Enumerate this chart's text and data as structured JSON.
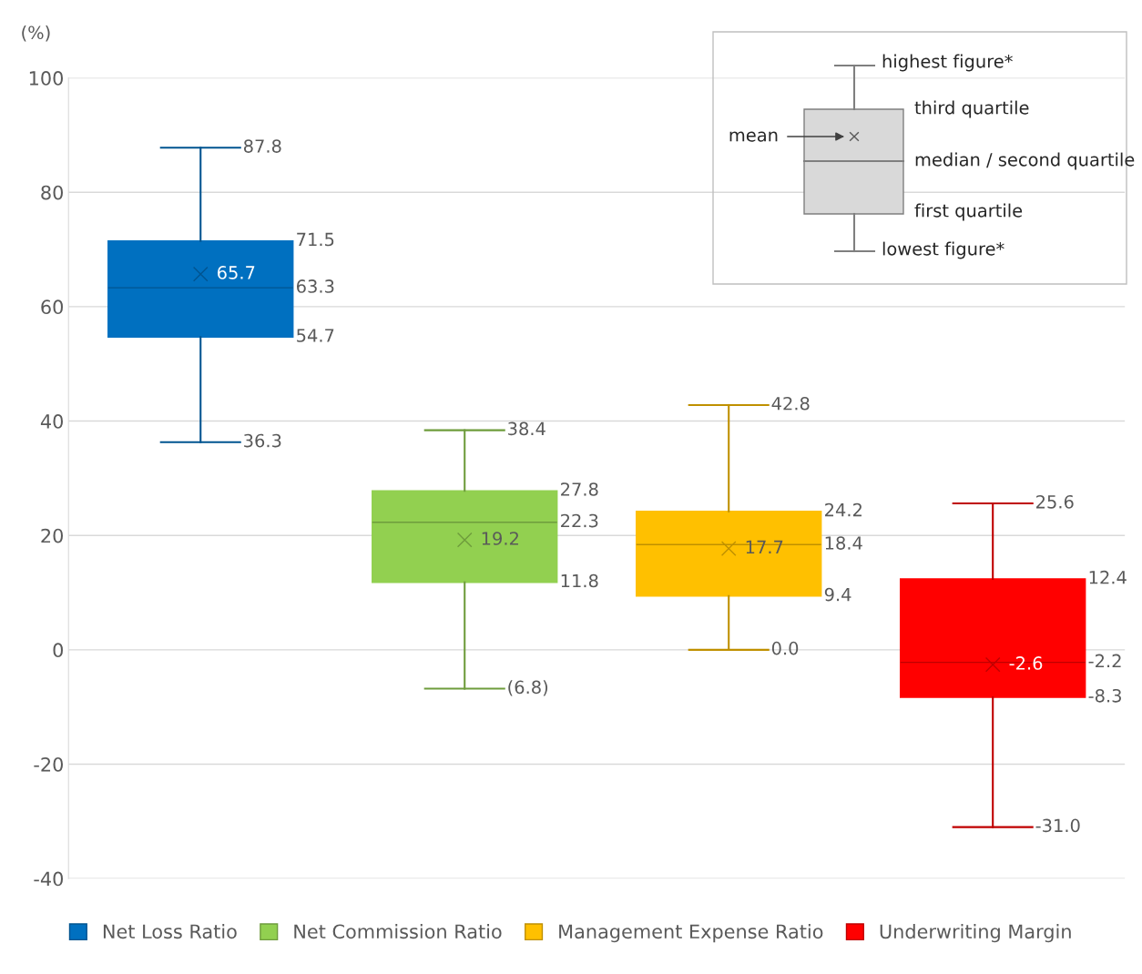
{
  "chart_data": {
    "type": "box",
    "ylabel": "(%)",
    "categories": [
      null,
      null,
      null,
      null
    ],
    "ylim": [
      -40,
      100
    ],
    "yticks": [
      -40,
      -20,
      0,
      20,
      40,
      60,
      80,
      100
    ],
    "grid": "y",
    "legend": "bottom",
    "tick_labels": "y",
    "marker": "cross",
    "series": [
      {
        "name": "Net Loss Ratio",
        "color": "#0070c0",
        "boxes": [
          {
            "low": 36.3,
            "q1": 54.7,
            "median": 63.3,
            "q3": 71.5,
            "high": 87.8,
            "mean": 65.7
          },
          null,
          null,
          null
        ],
        "value_labels": [
          [
            "36.3",
            "54.7",
            "63.3",
            "71.5",
            "87.8",
            "65.7"
          ],
          null,
          null,
          null
        ]
      },
      {
        "name": "Net Commission Ratio",
        "color": "#92d050",
        "boxes": [
          null,
          {
            "low": -6.8,
            "q1": 11.8,
            "median": 22.3,
            "q3": 27.8,
            "high": 38.4,
            "mean": 19.2
          },
          null,
          null
        ],
        "value_labels": [
          null,
          [
            "(6.8)",
            "11.8",
            "22.3",
            "27.8",
            "38.4",
            "19.2"
          ],
          null,
          null
        ]
      },
      {
        "name": "Management Expense Ratio",
        "color": "#ffc000",
        "boxes": [
          null,
          null,
          {
            "low": 0.0,
            "q1": 9.4,
            "median": 18.4,
            "q3": 24.2,
            "high": 42.8,
            "mean": 17.7
          },
          null
        ],
        "value_labels": [
          null,
          null,
          [
            "0.0",
            "9.4",
            "18.4",
            "24.2",
            "42.8",
            "17.7"
          ],
          null
        ]
      },
      {
        "name": "Underwriting Margin",
        "color": "#ff0000",
        "boxes": [
          null,
          null,
          null,
          {
            "low": -31.0,
            "q1": -8.3,
            "median": -2.2,
            "q3": 12.4,
            "high": 25.6,
            "mean": -2.6
          }
        ],
        "value_labels": [
          null,
          null,
          null,
          [
            "-31.0",
            "-8.3",
            "-2.2",
            "12.4",
            "25.6",
            "-2.6"
          ]
        ]
      }
    ],
    "annotations": [
      "highest figure*",
      "third quartile",
      "mean",
      "median / second quartile",
      "first quartile",
      "lowest figure*"
    ]
  }
}
